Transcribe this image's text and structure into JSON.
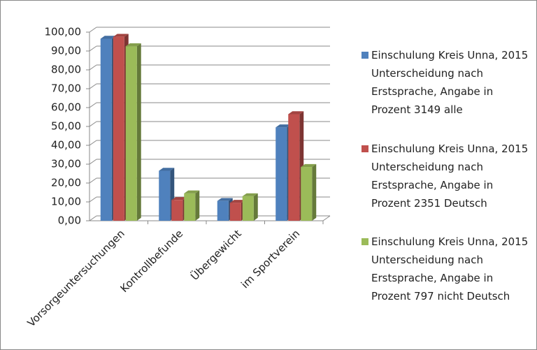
{
  "chart_data": {
    "type": "bar3d",
    "categories": [
      "Vorsorgeuntersuchungen",
      "Kontrollbefunde",
      "Übergewicht",
      "im Sportverein"
    ],
    "series": [
      {
        "name": "Einschulung Kreis Unna, 2015 Unterscheidung nach Erstsprache, Angabe in Prozent 3149 alle",
        "color": "#4f81bd",
        "values": [
          96.5,
          26.5,
          10.5,
          49.5
        ]
      },
      {
        "name": "Einschulung Kreis Unna, 2015 Unterscheidung nach Erstsprache, Angabe in Prozent 2351 Deutsch",
        "color": "#c0504d",
        "values": [
          97.5,
          11,
          9.5,
          56.5
        ]
      },
      {
        "name": "Einschulung Kreis Unna, 2015 Unterscheidung nach Erstsprache, Angabe in Prozent 797 nicht Deutsch",
        "color": "#9bbb59",
        "values": [
          92.5,
          14.5,
          13,
          28.5
        ]
      }
    ],
    "ylim": [
      0,
      100
    ],
    "yticks": [
      {
        "value": 0,
        "label": "0,00"
      },
      {
        "value": 10,
        "label": "10,00"
      },
      {
        "value": 20,
        "label": "20,00"
      },
      {
        "value": 30,
        "label": "30,00"
      },
      {
        "value": 40,
        "label": "40,00"
      },
      {
        "value": 50,
        "label": "50,00"
      },
      {
        "value": 60,
        "label": "60,00"
      },
      {
        "value": 70,
        "label": "70,00"
      },
      {
        "value": 80,
        "label": "80,00"
      },
      {
        "value": 90,
        "label": "90,00"
      },
      {
        "value": 100,
        "label": "100,00"
      }
    ],
    "grid": true,
    "legend": "right"
  }
}
